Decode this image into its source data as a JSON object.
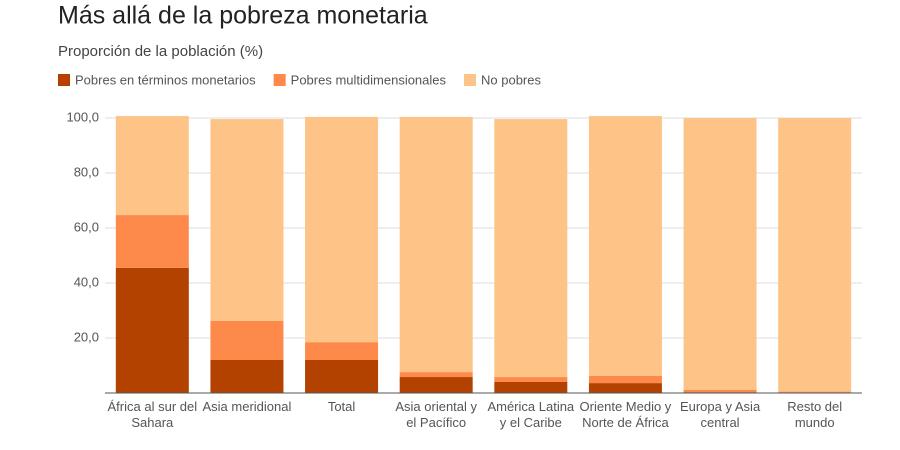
{
  "chart_data": {
    "type": "stacked_bar",
    "title": "Más allá de la pobreza monetaria",
    "subtitle": "Proporción de la población (%)",
    "categories": [
      "África al sur del Sahara",
      "Asia meridional",
      "Total",
      "Asia oriental y el Pacífico",
      "América Latina y el Caribe",
      "Oriente Medio y Norte de África",
      "Europa y Asia central",
      "Resto del mundo"
    ],
    "series": [
      {
        "name": "Pobres en términos monetarios",
        "color": "#b34200",
        "values": [
          45.5,
          12.0,
          12.0,
          5.8,
          4.0,
          3.6,
          0.3,
          0.2
        ]
      },
      {
        "name": "Pobres multidimensionales",
        "color": "#fd8a4b",
        "values": [
          19.2,
          14.2,
          6.5,
          1.8,
          1.8,
          2.6,
          0.8,
          0.3
        ]
      },
      {
        "name": "No pobres",
        "color": "#fdc387",
        "values": [
          36.0,
          73.4,
          81.9,
          92.8,
          93.8,
          94.5,
          98.9,
          99.5
        ]
      }
    ],
    "ylim": [
      0,
      100
    ],
    "yticks": [
      {
        "value": 20,
        "label": "20,0"
      },
      {
        "value": 40,
        "label": "40,0"
      },
      {
        "value": 60,
        "label": "60,0"
      },
      {
        "value": 80,
        "label": "80,0"
      },
      {
        "value": 100,
        "label": "100,0"
      }
    ],
    "grid": true
  }
}
